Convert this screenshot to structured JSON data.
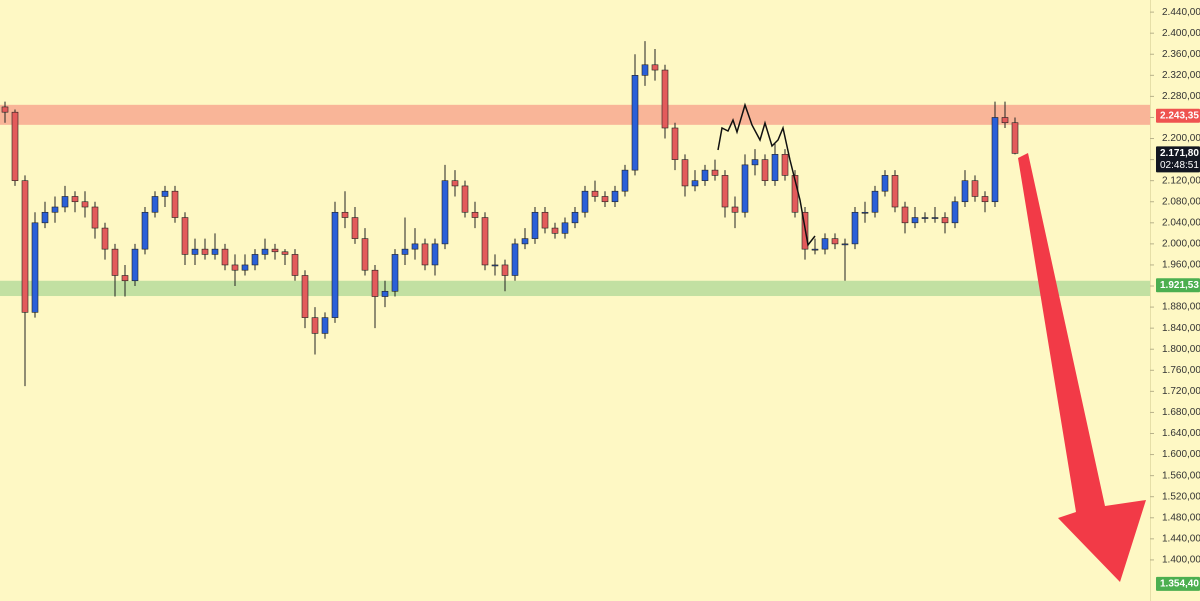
{
  "chart_data": {
    "type": "candlestick",
    "ylim": [
      1322,
      2463
    ],
    "yticks": [
      {
        "value": 2440,
        "label": "2.440,00"
      },
      {
        "value": 2400,
        "label": "2.400,00"
      },
      {
        "value": 2360,
        "label": "2.360,00"
      },
      {
        "value": 2320,
        "label": "2.320,00"
      },
      {
        "value": 2280,
        "label": "2.280,00"
      },
      {
        "value": 2240,
        "label": "2.240,00"
      },
      {
        "value": 2200,
        "label": "2.200,00"
      },
      {
        "value": 2160,
        "label": "2.160,00"
      },
      {
        "value": 2120,
        "label": "2.120,00"
      },
      {
        "value": 2080,
        "label": "2.080,00"
      },
      {
        "value": 2040,
        "label": "2.040,00"
      },
      {
        "value": 2000,
        "label": "2.000,00"
      },
      {
        "value": 1960,
        "label": "1.960,00"
      },
      {
        "value": 1920,
        "label": "1.920,00"
      },
      {
        "value": 1880,
        "label": "1.880,00"
      },
      {
        "value": 1840,
        "label": "1.840,00"
      },
      {
        "value": 1800,
        "label": "1.800,00"
      },
      {
        "value": 1760,
        "label": "1.760,00"
      },
      {
        "value": 1720,
        "label": "1.720,00"
      },
      {
        "value": 1680,
        "label": "1.680,00"
      },
      {
        "value": 1640,
        "label": "1.640,00"
      },
      {
        "value": 1600,
        "label": "1.600,00"
      },
      {
        "value": 1560,
        "label": "1.560,00"
      },
      {
        "value": 1520,
        "label": "1.520,00"
      },
      {
        "value": 1480,
        "label": "1.480,00"
      },
      {
        "value": 1440,
        "label": "1.440,00"
      },
      {
        "value": 1400,
        "label": "1.400,00"
      }
    ],
    "up_color": "#2a5fd8",
    "down_color": "#e35b5b",
    "zones": [
      {
        "from": 2226,
        "to": 2264,
        "color": "#f9b598"
      },
      {
        "from": 1901,
        "to": 1930,
        "color": "#c2e0a2"
      }
    ],
    "price_labels": [
      {
        "value": 2243.35,
        "label": "2.243,35",
        "color": "#ef5350"
      },
      {
        "value": 2171.8,
        "label": "2.171,80",
        "color": "#131722",
        "countdown": "02:48:51"
      },
      {
        "value": 1921.53,
        "label": "1.921,53",
        "color": "#4caf50"
      },
      {
        "value": 1354.4,
        "label": "1.354,40",
        "color": "#4caf50"
      }
    ],
    "ohlc": [
      [
        2260,
        2270,
        2230,
        2250
      ],
      [
        2250,
        2255,
        2110,
        2120
      ],
      [
        2120,
        2130,
        1730,
        1870
      ],
      [
        1870,
        2060,
        1860,
        2040
      ],
      [
        2040,
        2080,
        2030,
        2060
      ],
      [
        2060,
        2090,
        2040,
        2070
      ],
      [
        2070,
        2110,
        2060,
        2090
      ],
      [
        2090,
        2100,
        2060,
        2080
      ],
      [
        2080,
        2100,
        2050,
        2070
      ],
      [
        2070,
        2080,
        2010,
        2030
      ],
      [
        2030,
        2040,
        1970,
        1990
      ],
      [
        1990,
        2000,
        1900,
        1940
      ],
      [
        1940,
        1960,
        1900,
        1930
      ],
      [
        1930,
        2000,
        1920,
        1990
      ],
      [
        1990,
        2070,
        1980,
        2060
      ],
      [
        2060,
        2100,
        2050,
        2090
      ],
      [
        2090,
        2110,
        2070,
        2100
      ],
      [
        2100,
        2110,
        2040,
        2050
      ],
      [
        2050,
        2060,
        1960,
        1980
      ],
      [
        1980,
        2010,
        1960,
        1990
      ],
      [
        1990,
        2010,
        1970,
        1980
      ],
      [
        1980,
        2020,
        1970,
        1990
      ],
      [
        1990,
        2000,
        1950,
        1960
      ],
      [
        1960,
        1980,
        1920,
        1950
      ],
      [
        1950,
        1980,
        1940,
        1960
      ],
      [
        1960,
        1990,
        1950,
        1980
      ],
      [
        1980,
        2010,
        1970,
        1990
      ],
      [
        1990,
        2000,
        1970,
        1985
      ],
      [
        1985,
        1990,
        1960,
        1980
      ],
      [
        1980,
        1990,
        1930,
        1940
      ],
      [
        1940,
        1950,
        1840,
        1860
      ],
      [
        1860,
        1880,
        1790,
        1830
      ],
      [
        1830,
        1870,
        1820,
        1860
      ],
      [
        1860,
        2080,
        1850,
        2060
      ],
      [
        2060,
        2100,
        2030,
        2050
      ],
      [
        2050,
        2070,
        2000,
        2010
      ],
      [
        2010,
        2030,
        1940,
        1950
      ],
      [
        1950,
        1960,
        1840,
        1900
      ],
      [
        1900,
        1930,
        1880,
        1910
      ],
      [
        1910,
        1990,
        1900,
        1980
      ],
      [
        1980,
        2050,
        1960,
        1990
      ],
      [
        1990,
        2030,
        1970,
        2000
      ],
      [
        2000,
        2010,
        1950,
        1960
      ],
      [
        1960,
        2010,
        1940,
        2000
      ],
      [
        2000,
        2150,
        1990,
        2120
      ],
      [
        2120,
        2140,
        2090,
        2110
      ],
      [
        2110,
        2120,
        2050,
        2060
      ],
      [
        2060,
        2080,
        2030,
        2050
      ],
      [
        2050,
        2060,
        1950,
        1960
      ],
      [
        1960,
        1980,
        1940,
        1960
      ],
      [
        1960,
        1970,
        1910,
        1940
      ],
      [
        1940,
        2010,
        1930,
        2000
      ],
      [
        2000,
        2030,
        1990,
        2010
      ],
      [
        2010,
        2070,
        2000,
        2060
      ],
      [
        2060,
        2070,
        2020,
        2030
      ],
      [
        2030,
        2040,
        2010,
        2020
      ],
      [
        2020,
        2050,
        2010,
        2040
      ],
      [
        2040,
        2070,
        2030,
        2060
      ],
      [
        2060,
        2110,
        2050,
        2100
      ],
      [
        2100,
        2120,
        2080,
        2090
      ],
      [
        2090,
        2100,
        2070,
        2080
      ],
      [
        2080,
        2110,
        2070,
        2100
      ],
      [
        2100,
        2150,
        2090,
        2140
      ],
      [
        2140,
        2360,
        2130,
        2320
      ],
      [
        2320,
        2385,
        2300,
        2340
      ],
      [
        2340,
        2370,
        2310,
        2330
      ],
      [
        2330,
        2340,
        2200,
        2220
      ],
      [
        2220,
        2230,
        2140,
        2160
      ],
      [
        2160,
        2170,
        2090,
        2110
      ],
      [
        2110,
        2140,
        2100,
        2120
      ],
      [
        2120,
        2150,
        2110,
        2140
      ],
      [
        2140,
        2160,
        2120,
        2130
      ],
      [
        2130,
        2140,
        2050,
        2070
      ],
      [
        2070,
        2090,
        2030,
        2060
      ],
      [
        2060,
        2170,
        2050,
        2150
      ],
      [
        2150,
        2180,
        2130,
        2160
      ],
      [
        2160,
        2170,
        2110,
        2120
      ],
      [
        2120,
        2190,
        2110,
        2170
      ],
      [
        2170,
        2180,
        2120,
        2130
      ],
      [
        2130,
        2140,
        2050,
        2060
      ],
      [
        2060,
        2070,
        1970,
        1990
      ],
      [
        1990,
        2010,
        1980,
        1990
      ],
      [
        1990,
        2020,
        1980,
        2010
      ],
      [
        2010,
        2020,
        1990,
        2000
      ],
      [
        2000,
        2010,
        1930,
        2000
      ],
      [
        2000,
        2070,
        1990,
        2060
      ],
      [
        2060,
        2080,
        2040,
        2060
      ],
      [
        2060,
        2110,
        2050,
        2100
      ],
      [
        2100,
        2140,
        2090,
        2130
      ],
      [
        2130,
        2140,
        2060,
        2070
      ],
      [
        2070,
        2080,
        2020,
        2040
      ],
      [
        2040,
        2070,
        2030,
        2050
      ],
      [
        2050,
        2060,
        2040,
        2050
      ],
      [
        2050,
        2070,
        2040,
        2050
      ],
      [
        2050,
        2060,
        2020,
        2040
      ],
      [
        2040,
        2090,
        2030,
        2080
      ],
      [
        2080,
        2140,
        2070,
        2120
      ],
      [
        2120,
        2130,
        2080,
        2090
      ],
      [
        2090,
        2100,
        2060,
        2080
      ],
      [
        2080,
        2270,
        2070,
        2240
      ],
      [
        2240,
        2270,
        2220,
        2230
      ],
      [
        2230,
        2240,
        2170,
        2171.8
      ]
    ]
  }
}
